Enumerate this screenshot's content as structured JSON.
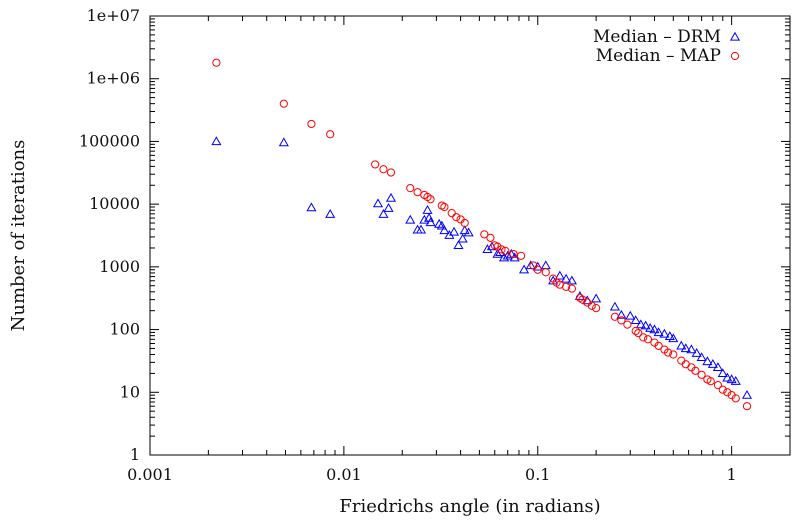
{
  "chart_data": {
    "type": "scatter",
    "title": "",
    "xlabel": "Friedrichs angle (in radians)",
    "ylabel": "Number of iterations",
    "x_scale": "log",
    "y_scale": "log",
    "xlim": [
      0.001,
      2.0
    ],
    "ylim": [
      1,
      10000000
    ],
    "x_ticks": [
      {
        "value": 0.001,
        "label": "0.001"
      },
      {
        "value": 0.01,
        "label": "0.01"
      },
      {
        "value": 0.1,
        "label": "0.1"
      },
      {
        "value": 1,
        "label": "1"
      }
    ],
    "y_ticks": [
      {
        "value": 1,
        "label": "1"
      },
      {
        "value": 10,
        "label": "10"
      },
      {
        "value": 100,
        "label": "100"
      },
      {
        "value": 1000,
        "label": "1000"
      },
      {
        "value": 10000,
        "label": "10000"
      },
      {
        "value": 100000,
        "label": "100000"
      },
      {
        "value": 1000000,
        "label": "1e+06"
      },
      {
        "value": 10000000,
        "label": "1e+07"
      }
    ],
    "grid": false,
    "legend_position": "top-right",
    "series": [
      {
        "name": "Median – DRM",
        "marker": "triangle",
        "color": "#0000ff",
        "points": [
          [
            0.0022,
            100000
          ],
          [
            0.0049,
            96000
          ],
          [
            0.0068,
            8800
          ],
          [
            0.0085,
            6900
          ],
          [
            0.015,
            10200
          ],
          [
            0.016,
            6900
          ],
          [
            0.017,
            8600
          ],
          [
            0.0175,
            12500
          ],
          [
            0.022,
            5600
          ],
          [
            0.024,
            3900
          ],
          [
            0.025,
            3900
          ],
          [
            0.026,
            5600
          ],
          [
            0.027,
            8000
          ],
          [
            0.0275,
            6000
          ],
          [
            0.028,
            5100
          ],
          [
            0.031,
            4800
          ],
          [
            0.032,
            4500
          ],
          [
            0.033,
            3800
          ],
          [
            0.035,
            3200
          ],
          [
            0.037,
            3600
          ],
          [
            0.039,
            2200
          ],
          [
            0.041,
            2800
          ],
          [
            0.042,
            3800
          ],
          [
            0.044,
            3500
          ],
          [
            0.055,
            1900
          ],
          [
            0.058,
            2100
          ],
          [
            0.062,
            1600
          ],
          [
            0.064,
            1700
          ],
          [
            0.067,
            1400
          ],
          [
            0.07,
            1500
          ],
          [
            0.073,
            1600
          ],
          [
            0.076,
            1400
          ],
          [
            0.085,
            900
          ],
          [
            0.092,
            1050
          ],
          [
            0.1,
            1000
          ],
          [
            0.11,
            1050
          ],
          [
            0.12,
            600
          ],
          [
            0.13,
            720
          ],
          [
            0.14,
            640
          ],
          [
            0.15,
            600
          ],
          [
            0.165,
            340
          ],
          [
            0.18,
            290
          ],
          [
            0.2,
            310
          ],
          [
            0.25,
            230
          ],
          [
            0.27,
            170
          ],
          [
            0.3,
            165
          ],
          [
            0.32,
            140
          ],
          [
            0.34,
            120
          ],
          [
            0.36,
            115
          ],
          [
            0.38,
            105
          ],
          [
            0.4,
            100
          ],
          [
            0.42,
            90
          ],
          [
            0.45,
            85
          ],
          [
            0.48,
            78
          ],
          [
            0.5,
            72
          ],
          [
            0.55,
            55
          ],
          [
            0.58,
            50
          ],
          [
            0.62,
            48
          ],
          [
            0.66,
            42
          ],
          [
            0.7,
            36
          ],
          [
            0.75,
            31
          ],
          [
            0.8,
            28
          ],
          [
            0.85,
            25
          ],
          [
            0.9,
            20
          ],
          [
            0.95,
            17
          ],
          [
            1.0,
            16
          ],
          [
            1.05,
            15
          ],
          [
            1.2,
            9
          ]
        ]
      },
      {
        "name": "Median – MAP",
        "marker": "circle",
        "color": "#ff0000",
        "points": [
          [
            0.0022,
            1800000
          ],
          [
            0.0049,
            400000
          ],
          [
            0.0068,
            190000
          ],
          [
            0.0085,
            130000
          ],
          [
            0.0145,
            43000
          ],
          [
            0.016,
            36000
          ],
          [
            0.0175,
            32000
          ],
          [
            0.022,
            18000
          ],
          [
            0.024,
            15500
          ],
          [
            0.026,
            14000
          ],
          [
            0.027,
            13000
          ],
          [
            0.028,
            12000
          ],
          [
            0.032,
            9500
          ],
          [
            0.033,
            9000
          ],
          [
            0.036,
            7200
          ],
          [
            0.038,
            6200
          ],
          [
            0.04,
            5700
          ],
          [
            0.042,
            5000
          ],
          [
            0.053,
            3300
          ],
          [
            0.057,
            2900
          ],
          [
            0.06,
            2200
          ],
          [
            0.062,
            2100
          ],
          [
            0.065,
            1900
          ],
          [
            0.068,
            1800
          ],
          [
            0.075,
            1600
          ],
          [
            0.082,
            1500
          ],
          [
            0.095,
            1050
          ],
          [
            0.1,
            900
          ],
          [
            0.11,
            820
          ],
          [
            0.12,
            650
          ],
          [
            0.125,
            560
          ],
          [
            0.13,
            520
          ],
          [
            0.14,
            480
          ],
          [
            0.15,
            450
          ],
          [
            0.165,
            320
          ],
          [
            0.17,
            300
          ],
          [
            0.18,
            270
          ],
          [
            0.19,
            240
          ],
          [
            0.2,
            220
          ],
          [
            0.25,
            160
          ],
          [
            0.27,
            140
          ],
          [
            0.29,
            120
          ],
          [
            0.32,
            95
          ],
          [
            0.33,
            88
          ],
          [
            0.35,
            75
          ],
          [
            0.37,
            70
          ],
          [
            0.4,
            62
          ],
          [
            0.42,
            55
          ],
          [
            0.45,
            48
          ],
          [
            0.47,
            43
          ],
          [
            0.5,
            40
          ],
          [
            0.55,
            32
          ],
          [
            0.58,
            28
          ],
          [
            0.62,
            25
          ],
          [
            0.65,
            22
          ],
          [
            0.7,
            19
          ],
          [
            0.75,
            16
          ],
          [
            0.78,
            15
          ],
          [
            0.85,
            13
          ],
          [
            0.9,
            11
          ],
          [
            0.95,
            10
          ],
          [
            1.0,
            9
          ],
          [
            1.05,
            8
          ],
          [
            1.2,
            6
          ]
        ]
      }
    ]
  }
}
